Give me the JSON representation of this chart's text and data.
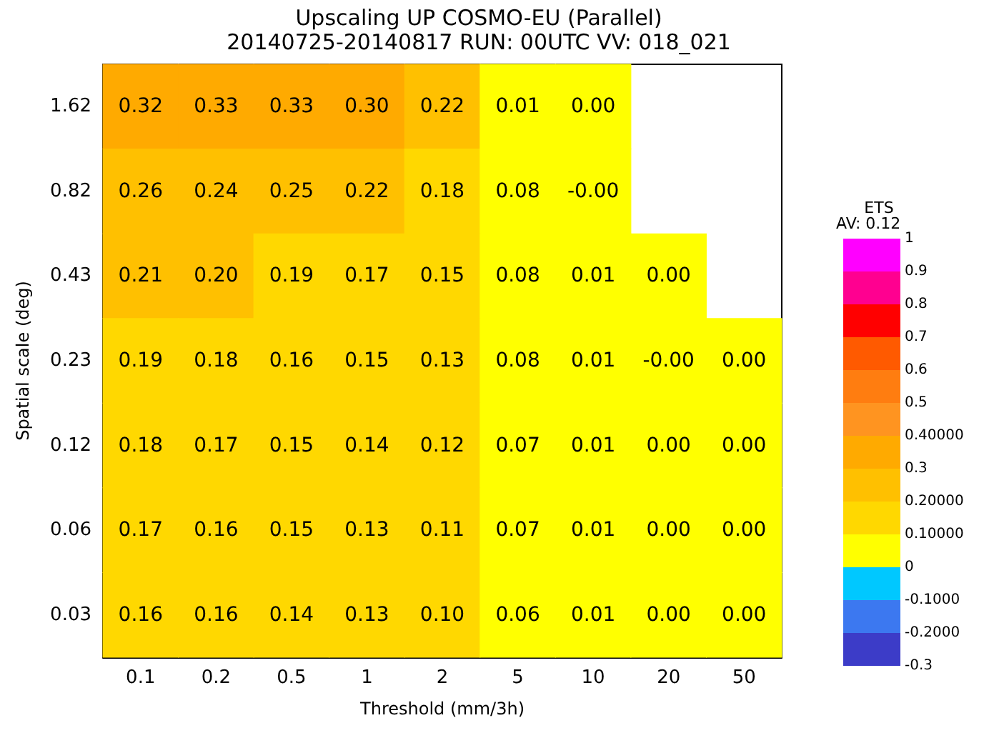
{
  "chart_data": {
    "type": "heatmap",
    "title": "Upscaling UP COSMO-EU (Parallel)",
    "subtitle": "20140725-20140817 RUN: 00UTC VV: 018_021",
    "xlabel": "Threshold (mm/3h)",
    "ylabel": "Spatial scale (deg)",
    "clabel": "ETS",
    "annotations": [
      "AV: 0.12"
    ],
    "categories": [
      "0.1",
      "0.2",
      "0.5",
      "1",
      "2",
      "5",
      "10",
      "20",
      "50"
    ],
    "y_categories": [
      "1.62",
      "0.82",
      "0.43",
      "0.23",
      "0.12",
      "0.06",
      "0.03"
    ],
    "cells": [
      [
        0.32,
        0.33,
        0.33,
        0.3,
        0.22,
        0.01,
        0.0,
        null,
        null
      ],
      [
        0.26,
        0.24,
        0.25,
        0.22,
        0.18,
        0.08,
        -0.0,
        null,
        null
      ],
      [
        0.21,
        0.2,
        0.19,
        0.17,
        0.15,
        0.08,
        0.01,
        0.0,
        null
      ],
      [
        0.19,
        0.18,
        0.16,
        0.15,
        0.13,
        0.08,
        0.01,
        -0.0,
        0.0
      ],
      [
        0.18,
        0.17,
        0.15,
        0.14,
        0.12,
        0.07,
        0.01,
        0.0,
        0.0
      ],
      [
        0.17,
        0.16,
        0.15,
        0.13,
        0.11,
        0.07,
        0.01,
        0.0,
        0.0
      ],
      [
        0.16,
        0.16,
        0.14,
        0.13,
        0.1,
        0.06,
        0.01,
        0.0,
        0.0
      ]
    ],
    "cell_labels": [
      [
        "0.32",
        "0.33",
        "0.33",
        "0.30",
        "0.22",
        "0.01",
        "0.00",
        null,
        null
      ],
      [
        "0.26",
        "0.24",
        "0.25",
        "0.22",
        "0.18",
        "0.08",
        "-0.00",
        null,
        null
      ],
      [
        "0.21",
        "0.20",
        "0.19",
        "0.17",
        "0.15",
        "0.08",
        "0.01",
        "0.00",
        null
      ],
      [
        "0.19",
        "0.18",
        "0.16",
        "0.15",
        "0.13",
        "0.08",
        "0.01",
        "-0.00",
        "0.00"
      ],
      [
        "0.18",
        "0.17",
        "0.15",
        "0.14",
        "0.12",
        "0.07",
        "0.01",
        "0.00",
        "0.00"
      ],
      [
        "0.17",
        "0.16",
        "0.15",
        "0.13",
        "0.11",
        "0.07",
        "0.01",
        "0.00",
        "0.00"
      ],
      [
        "0.16",
        "0.16",
        "0.14",
        "0.13",
        "0.10",
        "0.06",
        "0.01",
        "0.00",
        "0.00"
      ]
    ],
    "clim": [
      -0.3,
      1
    ],
    "cticks": [
      {
        "value": -0.3,
        "label": "-0.3"
      },
      {
        "value": -0.2,
        "label": "-0.2000"
      },
      {
        "value": -0.1,
        "label": "-0.1000"
      },
      0,
      {
        "value": 0.1,
        "label": "0.10000"
      },
      {
        "value": 0.2,
        "label": "0.20000"
      },
      0.3,
      {
        "value": 0.4,
        "label": "0.40000"
      },
      0.5,
      0.6,
      0.7,
      0.8,
      0.9,
      1
    ],
    "colors": [
      "#3c3cc8",
      "#3c78f0",
      "#00c8ff",
      "#ffff00",
      "#ffd800",
      "#ffc000",
      "#ffaa00",
      "#ff9420",
      "#ff7d10",
      "#ff5a00",
      "#ff0000",
      "#ff0090",
      "#ff00ff"
    ]
  }
}
